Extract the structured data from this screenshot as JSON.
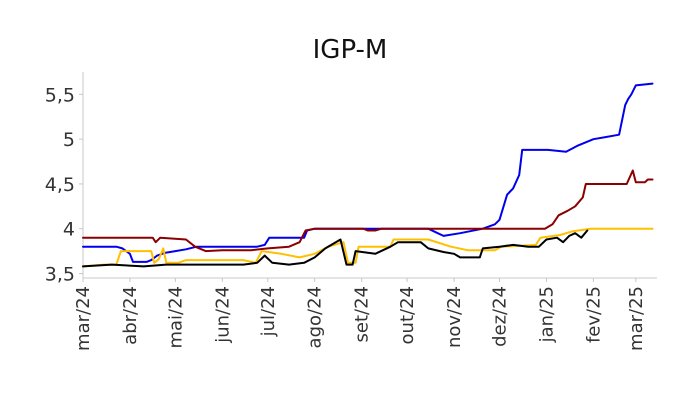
{
  "chart_data": {
    "type": "line",
    "title": "IGP-M",
    "xlabel": "",
    "ylabel": "",
    "x_range": [
      "2024-03-01",
      "2025-03-15"
    ],
    "ylim": [
      3.45,
      5.75
    ],
    "yticks": [
      {
        "value": 3.5,
        "label": "3,5"
      },
      {
        "value": 4.0,
        "label": "4"
      },
      {
        "value": 4.5,
        "label": "4,5"
      },
      {
        "value": 5.0,
        "label": "5"
      },
      {
        "value": 5.5,
        "label": "5,5"
      }
    ],
    "xticks": [
      {
        "date": "2024-03-01",
        "label": "mar/24"
      },
      {
        "date": "2024-04-01",
        "label": "abr/24"
      },
      {
        "date": "2024-05-01",
        "label": "mai/24"
      },
      {
        "date": "2024-06-01",
        "label": "jun/24"
      },
      {
        "date": "2024-07-01",
        "label": "jul/24"
      },
      {
        "date": "2024-08-01",
        "label": "ago/24"
      },
      {
        "date": "2024-09-01",
        "label": "set/24"
      },
      {
        "date": "2024-10-01",
        "label": "out/24"
      },
      {
        "date": "2024-11-01",
        "label": "nov/24"
      },
      {
        "date": "2024-12-01",
        "label": "dez/24"
      },
      {
        "date": "2025-01-01",
        "label": "jan/25"
      },
      {
        "date": "2025-02-01",
        "label": "fev/25"
      },
      {
        "date": "2025-03-01",
        "label": "mar/25"
      }
    ],
    "grid": false,
    "legend": "none",
    "series": [
      {
        "color": "#0000ee",
        "points": [
          [
            "2024-03-01",
            3.8
          ],
          [
            "2024-03-23",
            3.8
          ],
          [
            "2024-03-27",
            3.78
          ],
          [
            "2024-04-01",
            3.72
          ],
          [
            "2024-04-03",
            3.63
          ],
          [
            "2024-04-12",
            3.63
          ],
          [
            "2024-04-15",
            3.65
          ],
          [
            "2024-04-19",
            3.7
          ],
          [
            "2024-04-24",
            3.73
          ],
          [
            "2024-05-01",
            3.75
          ],
          [
            "2024-05-08",
            3.77
          ],
          [
            "2024-05-15",
            3.8
          ],
          [
            "2024-06-24",
            3.8
          ],
          [
            "2024-06-29",
            3.82
          ],
          [
            "2024-07-02",
            3.9
          ],
          [
            "2024-07-25",
            3.9
          ],
          [
            "2024-07-27",
            3.98
          ],
          [
            "2024-08-01",
            4.0
          ],
          [
            "2024-10-15",
            4.0
          ],
          [
            "2024-10-20",
            3.96
          ],
          [
            "2024-10-25",
            3.92
          ],
          [
            "2024-11-05",
            3.95
          ],
          [
            "2024-11-20",
            4.0
          ],
          [
            "2024-11-28",
            4.05
          ],
          [
            "2024-12-01",
            4.1
          ],
          [
            "2024-12-06",
            4.38
          ],
          [
            "2024-12-10",
            4.45
          ],
          [
            "2024-12-14",
            4.6
          ],
          [
            "2024-12-16",
            4.88
          ],
          [
            "2025-01-02",
            4.88
          ],
          [
            "2025-01-14",
            4.86
          ],
          [
            "2025-01-22",
            4.93
          ],
          [
            "2025-02-01",
            5.0
          ],
          [
            "2025-02-08",
            5.02
          ],
          [
            "2025-02-18",
            5.05
          ],
          [
            "2025-02-22",
            5.38
          ],
          [
            "2025-02-24",
            5.45
          ],
          [
            "2025-02-26",
            5.5
          ],
          [
            "2025-03-01",
            5.6
          ],
          [
            "2025-03-12",
            5.62
          ]
        ]
      },
      {
        "color": "#8b0000",
        "points": [
          [
            "2024-03-01",
            3.9
          ],
          [
            "2024-04-16",
            3.9
          ],
          [
            "2024-04-18",
            3.85
          ],
          [
            "2024-04-21",
            3.9
          ],
          [
            "2024-05-08",
            3.88
          ],
          [
            "2024-05-14",
            3.8
          ],
          [
            "2024-05-21",
            3.75
          ],
          [
            "2024-06-01",
            3.76
          ],
          [
            "2024-06-20",
            3.76
          ],
          [
            "2024-07-01",
            3.78
          ],
          [
            "2024-07-15",
            3.8
          ],
          [
            "2024-07-22",
            3.85
          ],
          [
            "2024-07-26",
            3.98
          ],
          [
            "2024-08-01",
            4.0
          ],
          [
            "2024-09-02",
            4.0
          ],
          [
            "2024-09-05",
            3.98
          ],
          [
            "2024-09-10",
            3.98
          ],
          [
            "2024-09-14",
            4.0
          ],
          [
            "2024-12-31",
            4.0
          ],
          [
            "2025-01-05",
            4.05
          ],
          [
            "2025-01-09",
            4.15
          ],
          [
            "2025-01-15",
            4.2
          ],
          [
            "2025-01-20",
            4.25
          ],
          [
            "2025-01-25",
            4.35
          ],
          [
            "2025-01-27",
            4.5
          ],
          [
            "2025-02-23",
            4.5
          ],
          [
            "2025-02-27",
            4.65
          ],
          [
            "2025-03-01",
            4.52
          ],
          [
            "2025-03-07",
            4.52
          ],
          [
            "2025-03-09",
            4.55
          ],
          [
            "2025-03-12",
            4.55
          ]
        ]
      },
      {
        "color": "#ffc000",
        "points": [
          [
            "2024-03-01",
            3.58
          ],
          [
            "2024-03-15",
            3.6
          ],
          [
            "2024-03-23",
            3.6
          ],
          [
            "2024-03-26",
            3.75
          ],
          [
            "2024-04-15",
            3.75
          ],
          [
            "2024-04-17",
            3.62
          ],
          [
            "2024-04-20",
            3.66
          ],
          [
            "2024-04-23",
            3.78
          ],
          [
            "2024-04-25",
            3.62
          ],
          [
            "2024-05-03",
            3.62
          ],
          [
            "2024-05-08",
            3.65
          ],
          [
            "2024-06-15",
            3.65
          ],
          [
            "2024-06-23",
            3.62
          ],
          [
            "2024-06-27",
            3.75
          ],
          [
            "2024-07-10",
            3.72
          ],
          [
            "2024-07-22",
            3.68
          ],
          [
            "2024-08-01",
            3.72
          ],
          [
            "2024-08-10",
            3.8
          ],
          [
            "2024-08-20",
            3.85
          ],
          [
            "2024-08-23",
            3.62
          ],
          [
            "2024-08-28",
            3.62
          ],
          [
            "2024-08-30",
            3.8
          ],
          [
            "2024-09-20",
            3.8
          ],
          [
            "2024-09-22",
            3.88
          ],
          [
            "2024-10-15",
            3.88
          ],
          [
            "2024-10-30",
            3.8
          ],
          [
            "2024-11-10",
            3.76
          ],
          [
            "2024-11-28",
            3.76
          ],
          [
            "2024-12-02",
            3.8
          ],
          [
            "2024-12-25",
            3.82
          ],
          [
            "2024-12-28",
            3.9
          ],
          [
            "2025-01-10",
            3.93
          ],
          [
            "2025-01-18",
            3.97
          ],
          [
            "2025-01-30",
            4.0
          ],
          [
            "2025-03-12",
            4.0
          ]
        ]
      },
      {
        "color": "#000000",
        "points": [
          [
            "2024-03-01",
            3.58
          ],
          [
            "2024-03-20",
            3.6
          ],
          [
            "2024-04-10",
            3.58
          ],
          [
            "2024-04-25",
            3.6
          ],
          [
            "2024-05-10",
            3.6
          ],
          [
            "2024-06-15",
            3.6
          ],
          [
            "2024-06-24",
            3.62
          ],
          [
            "2024-06-29",
            3.7
          ],
          [
            "2024-07-04",
            3.62
          ],
          [
            "2024-07-15",
            3.6
          ],
          [
            "2024-07-25",
            3.62
          ],
          [
            "2024-08-01",
            3.68
          ],
          [
            "2024-08-08",
            3.78
          ],
          [
            "2024-08-18",
            3.88
          ],
          [
            "2024-08-22",
            3.6
          ],
          [
            "2024-08-26",
            3.6
          ],
          [
            "2024-08-28",
            3.75
          ],
          [
            "2024-09-10",
            3.72
          ],
          [
            "2024-09-20",
            3.8
          ],
          [
            "2024-09-25",
            3.85
          ],
          [
            "2024-10-10",
            3.85
          ],
          [
            "2024-10-15",
            3.78
          ],
          [
            "2024-10-25",
            3.74
          ],
          [
            "2024-11-01",
            3.72
          ],
          [
            "2024-11-05",
            3.68
          ],
          [
            "2024-11-18",
            3.68
          ],
          [
            "2024-11-20",
            3.78
          ],
          [
            "2024-12-01",
            3.8
          ],
          [
            "2024-12-10",
            3.82
          ],
          [
            "2024-12-20",
            3.8
          ],
          [
            "2024-12-27",
            3.8
          ],
          [
            "2025-01-01",
            3.88
          ],
          [
            "2025-01-08",
            3.9
          ],
          [
            "2025-01-12",
            3.85
          ],
          [
            "2025-01-16",
            3.92
          ],
          [
            "2025-01-20",
            3.95
          ],
          [
            "2025-01-24",
            3.9
          ],
          [
            "2025-01-28",
            3.98
          ]
        ]
      }
    ]
  }
}
